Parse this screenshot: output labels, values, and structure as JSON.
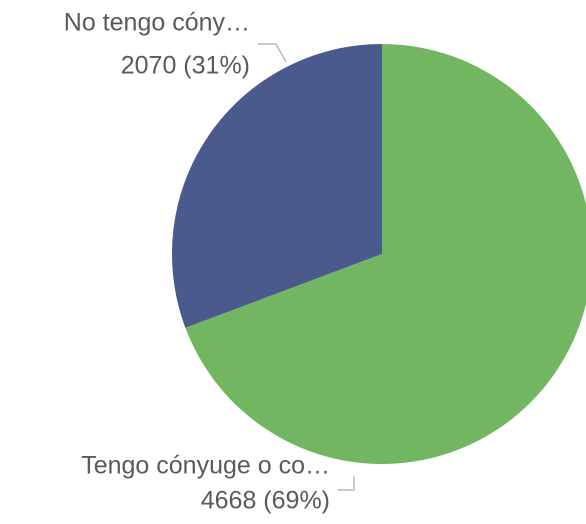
{
  "chart_data": {
    "type": "pie",
    "categories": [
      "Tengo cónyuge o co…",
      "No tengo cóny…"
    ],
    "values": [
      4668,
      2070
    ],
    "value_labels": [
      "4668 (69%)",
      "2070 (31%)"
    ],
    "colors": [
      "#72b662",
      "#4a5a8c"
    ]
  }
}
